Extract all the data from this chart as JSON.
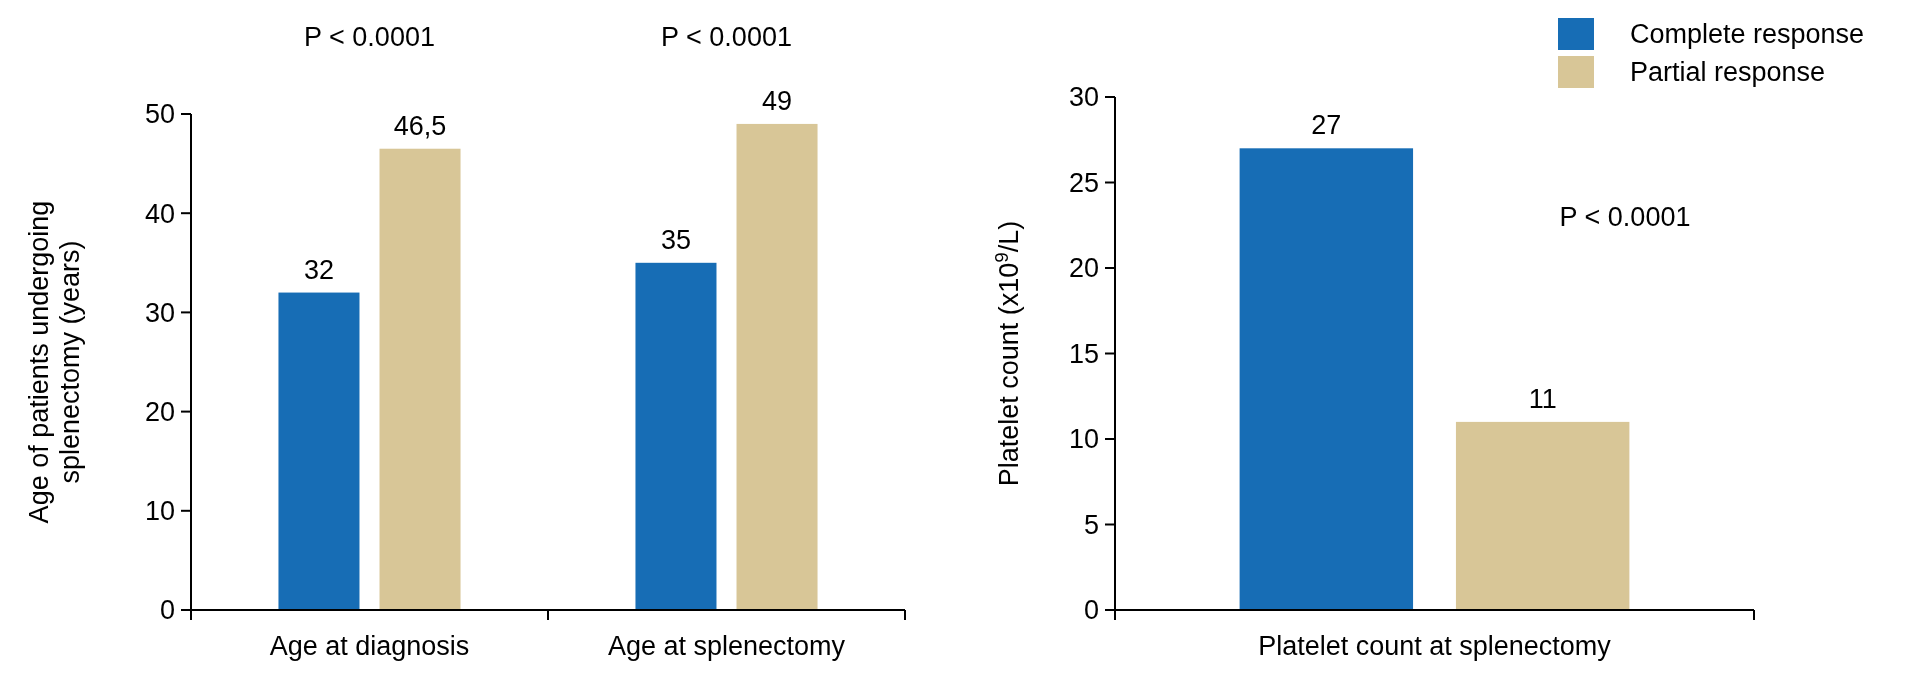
{
  "chart_data": [
    {
      "type": "bar",
      "ylabel": "Age of patients undergoing splenectomy (years)",
      "categories": [
        "Age at diagnosis",
        "Age at splenectomy"
      ],
      "series": [
        {
          "color": "#176db5",
          "values": [
            32,
            35
          ]
        },
        {
          "color": "#d8c697",
          "values": [
            46.5,
            49
          ]
        }
      ],
      "value_labels": [
        [
          "32",
          "35"
        ],
        [
          "46,5",
          "49"
        ]
      ],
      "ylim": [
        0,
        50
      ],
      "yticks": [
        0,
        10,
        20,
        30,
        40,
        50
      ],
      "annotations": [
        "P < 0.0001",
        "P < 0.0001"
      ],
      "legend": false
    },
    {
      "type": "bar",
      "ylabel": "Platelet count (x10$^{9}$/L)",
      "categories": [
        "Platelet count at splenectomy"
      ],
      "series": [
        {
          "name": "Complete response",
          "color": "#176db5",
          "values": [
            27
          ]
        },
        {
          "name": "Partial response",
          "color": "#d8c697",
          "values": [
            11
          ]
        }
      ],
      "ylim": [
        0,
        30
      ],
      "yticks": [
        0,
        5,
        10,
        15,
        20,
        25,
        30
      ],
      "data_labels": true,
      "annotations": [
        "P < 0.0001"
      ],
      "legend": "top right"
    }
  ]
}
